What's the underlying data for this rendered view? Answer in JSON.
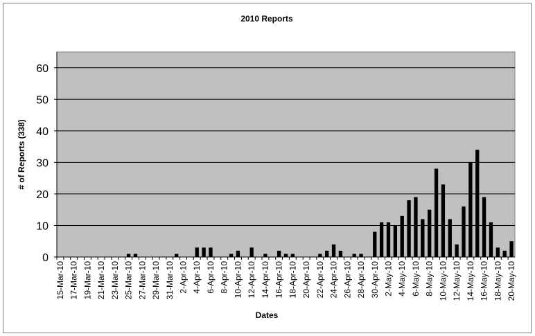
{
  "chart_data": {
    "type": "bar",
    "title": "2010 Reports",
    "x_label": "Dates",
    "y_label": "# of Reports (338)",
    "categories": [
      "15-Mar-10",
      null,
      "17-Mar-10",
      null,
      "19-Mar-10",
      null,
      "21-Mar-10",
      null,
      "23-Mar-10",
      null,
      "25-Mar-10",
      null,
      "27-Mar-10",
      null,
      "29-Mar-10",
      null,
      "31-Mar-10",
      null,
      "2-Apr-10",
      null,
      "4-Apr-10",
      null,
      "6-Apr-10",
      null,
      "8-Apr-10",
      null,
      "10-Apr-10",
      null,
      "12-Apr-10",
      null,
      "14-Apr-10",
      null,
      "16-Apr-10",
      null,
      "18-Apr-10",
      null,
      "20-Apr-10",
      null,
      "22-Apr-10",
      null,
      "24-Apr-10",
      null,
      "26-Apr-10",
      null,
      "28-Apr-10",
      null,
      "30-Apr-10",
      null,
      "2-May-10",
      null,
      "4-May-10",
      null,
      "6-May-10",
      null,
      "8-May-10",
      null,
      "10-May-10",
      null,
      "12-May-10",
      null,
      "14-May-10",
      null,
      "16-May-10",
      null,
      "18-May-10",
      null,
      "20-May-10"
    ],
    "values": [
      0,
      0,
      0,
      0,
      0,
      0,
      0,
      0,
      0,
      0,
      1,
      1,
      0,
      0,
      0,
      0,
      0,
      1,
      0,
      0,
      3,
      3,
      3,
      0,
      0,
      1,
      2,
      0,
      3,
      0,
      1,
      0,
      2,
      1,
      1,
      0,
      0,
      0,
      1,
      2,
      4,
      2,
      0,
      1,
      1,
      0,
      8,
      11,
      11,
      10,
      13,
      18,
      19,
      12,
      15,
      28,
      23,
      12,
      4,
      16,
      30,
      34,
      19,
      11,
      3,
      2,
      5
    ],
    "color": "#000000",
    "plot_background": "#c0c0c0",
    "ylim": [
      0,
      65
    ],
    "yticks": [
      0,
      10,
      20,
      30,
      40,
      50,
      60
    ],
    "grid": true
  }
}
